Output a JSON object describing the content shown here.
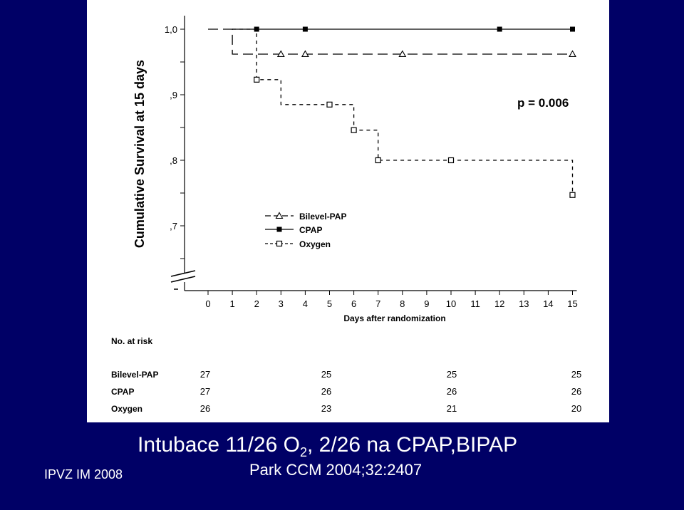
{
  "slide": {
    "title_part1": "Intubace 11/26 O",
    "title_sub": "2",
    "title_part2": ", 2/26 na CPAP,BIPAP",
    "citation": "Park CCM 2004;32:2407",
    "footer": "IPVZ IM 2008",
    "background_color": "#000066",
    "text_color": "#ffffff"
  },
  "chart_data": {
    "type": "line",
    "subtype": "kaplan-meier-step",
    "ylabel": "Cumulative Survival at 15 days",
    "xlabel": "Days after randomization",
    "x_ticks": [
      "0",
      "1",
      "2",
      "3",
      "4",
      "5",
      "6",
      "7",
      "8",
      "9",
      "10",
      "11",
      "12",
      "13",
      "14",
      "15"
    ],
    "y_ticks": [
      {
        "value": 1.0,
        "label": "1,0"
      },
      {
        "value": 0.9,
        "label": ",9"
      },
      {
        "value": 0.8,
        "label": ",8"
      },
      {
        "value": 0.7,
        "label": ",7"
      }
    ],
    "xlim": [
      0,
      15
    ],
    "ylim": [
      0.65,
      1.0
    ],
    "axis_break": true,
    "annotation": "p = 0.006",
    "legend_position": "center-left",
    "series": [
      {
        "name": "Bilevel-PAP",
        "marker": "open-triangle",
        "line_style": "long-dash",
        "steps": [
          [
            0,
            1.0
          ],
          [
            1,
            1.0
          ],
          [
            1,
            0.962
          ],
          [
            15,
            0.962
          ]
        ],
        "markers": [
          [
            3,
            0.962
          ],
          [
            4,
            0.962
          ],
          [
            8,
            0.962
          ],
          [
            15,
            0.962
          ]
        ]
      },
      {
        "name": "CPAP",
        "marker": "filled-square",
        "line_style": "solid",
        "steps": [
          [
            1,
            1.0
          ],
          [
            15,
            1.0
          ]
        ],
        "markers": [
          [
            2,
            1.0
          ],
          [
            4,
            1.0
          ],
          [
            12,
            1.0
          ],
          [
            15,
            1.0
          ]
        ]
      },
      {
        "name": "Oxygen",
        "marker": "open-square",
        "line_style": "short-dash",
        "steps": [
          [
            1,
            1.0
          ],
          [
            2,
            1.0
          ],
          [
            2,
            0.923
          ],
          [
            3,
            0.923
          ],
          [
            3,
            0.885
          ],
          [
            6,
            0.885
          ],
          [
            6,
            0.846
          ],
          [
            7,
            0.846
          ],
          [
            7,
            0.8
          ],
          [
            15,
            0.8
          ],
          [
            15,
            0.747
          ]
        ],
        "markers": [
          [
            2,
            0.923
          ],
          [
            5,
            0.885
          ],
          [
            6,
            0.846
          ],
          [
            7,
            0.8
          ],
          [
            10,
            0.8
          ],
          [
            15,
            0.747
          ]
        ]
      }
    ],
    "risk_table": {
      "title": "No. at risk",
      "columns_at_day": [
        0,
        5,
        10,
        15
      ],
      "rows": [
        {
          "label": "Bilevel-PAP",
          "values": [
            "27",
            "25",
            "25",
            "25"
          ]
        },
        {
          "label": "CPAP",
          "values": [
            "27",
            "26",
            "26",
            "26"
          ]
        },
        {
          "label": "Oxygen",
          "values": [
            "26",
            "23",
            "21",
            "20"
          ]
        }
      ]
    }
  }
}
